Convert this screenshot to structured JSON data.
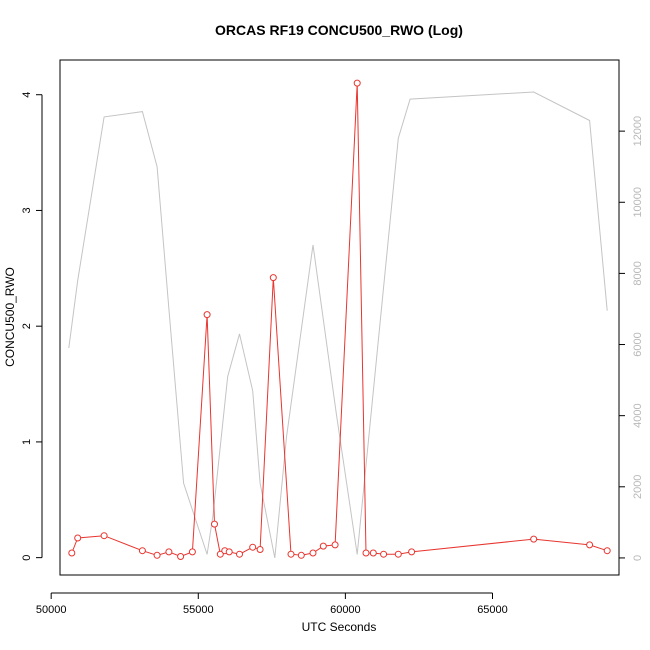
{
  "chart_data": {
    "type": "line",
    "title": "ORCAS RF19 CONCU500_RWO (Log)",
    "xlabel": "UTC Seconds",
    "ylabel": "CONCU500_RWO",
    "xlim": [
      50300,
      69300
    ],
    "ylim": [
      -0.15,
      4.3
    ],
    "y2lim": [
      -480,
      14000
    ],
    "x_ticks": [
      50000,
      55000,
      60000,
      65000
    ],
    "y_ticks": [
      0,
      1,
      2,
      3,
      4
    ],
    "y2_ticks": [
      0,
      2000,
      4000,
      6000,
      8000,
      10000,
      12000
    ],
    "grid": false,
    "colors": {
      "primary": "#e8352f",
      "secondary": "#c4c4c4"
    },
    "series": [
      {
        "axis": "left",
        "style": "line+circles",
        "color": "#e8352f",
        "x": [
          50700,
          50900,
          51800,
          53100,
          53600,
          54000,
          54400,
          54800,
          55300,
          55550,
          55750,
          55900,
          56050,
          56400,
          56850,
          57100,
          57550,
          58150,
          58500,
          58900,
          59250,
          59650,
          60400,
          60700,
          60950,
          61300,
          61800,
          62250,
          66400,
          68300,
          68900
        ],
        "y": [
          0.04,
          0.17,
          0.19,
          0.06,
          0.02,
          0.05,
          0.01,
          0.05,
          2.1,
          0.29,
          0.03,
          0.06,
          0.05,
          0.03,
          0.09,
          0.07,
          2.42,
          0.03,
          0.02,
          0.04,
          0.1,
          0.11,
          4.1,
          0.04,
          0.04,
          0.03,
          0.03,
          0.05,
          0.16,
          0.11,
          0.06
        ]
      },
      {
        "axis": "right",
        "style": "line",
        "color": "#c4c4c4",
        "x": [
          50600,
          50900,
          51800,
          53100,
          53600,
          54000,
          54500,
          55300,
          55500,
          56000,
          56400,
          56850,
          57100,
          57600,
          58000,
          58900,
          59700,
          60400,
          61800,
          62200,
          66400,
          68300,
          68900
        ],
        "y": [
          5900,
          7800,
          12400,
          12550,
          11000,
          7000,
          2100,
          100,
          1200,
          5100,
          6300,
          4700,
          2100,
          0,
          3400,
          8800,
          4000,
          100,
          11800,
          12900,
          13100,
          12300,
          6950
        ]
      }
    ]
  }
}
